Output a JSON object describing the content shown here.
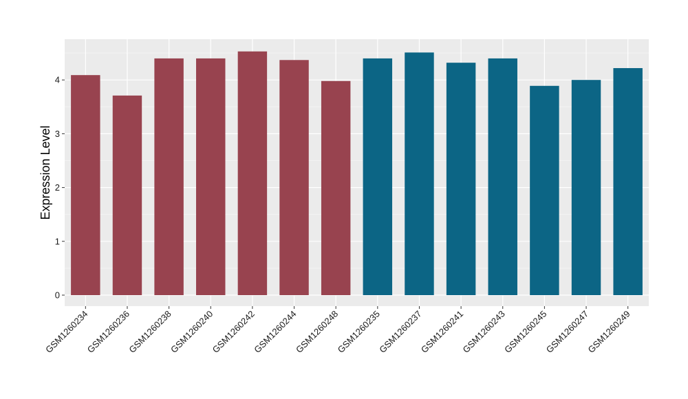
{
  "chart_data": {
    "type": "bar",
    "title": "",
    "xlabel": "",
    "ylabel": "Expression Level",
    "ylim": [
      0,
      4.72
    ],
    "yticks": [
      0,
      1,
      2,
      3,
      4
    ],
    "grid": true,
    "legend": "none",
    "categories": [
      "GSM1260234",
      "GSM1260236",
      "GSM1260238",
      "GSM1260240",
      "GSM1260242",
      "GSM1260244",
      "GSM1260248",
      "GSM1260235",
      "GSM1260237",
      "GSM1260241",
      "GSM1260243",
      "GSM1260245",
      "GSM1260247",
      "GSM1260249"
    ],
    "values": [
      4.09,
      3.71,
      4.4,
      4.4,
      4.53,
      4.37,
      3.98,
      4.4,
      4.51,
      4.32,
      4.4,
      3.89,
      4.0,
      4.22
    ],
    "groups": [
      0,
      0,
      0,
      0,
      0,
      0,
      0,
      1,
      1,
      1,
      1,
      1,
      1,
      1
    ],
    "colors": [
      "#98434F",
      "#0C6585"
    ]
  }
}
